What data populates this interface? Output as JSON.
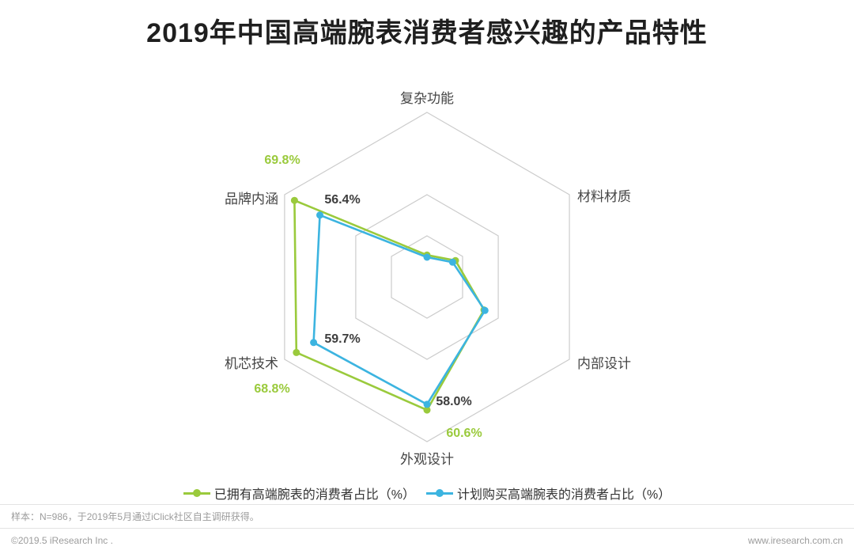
{
  "title": "2019年中国高端腕表消费者感兴趣的产品特性",
  "chart_data": {
    "type": "radar",
    "title": "2019年中国高端腕表消费者感兴趣的产品特性",
    "categories": [
      "复杂功能",
      "材料材质",
      "内部设计",
      "外观设计",
      "机芯技术",
      "品牌内涵"
    ],
    "r_axis": {
      "min": 0,
      "max": 75,
      "grid_levels": [
        0.25,
        0.5,
        1
      ]
    },
    "grid": "nested-hexagons",
    "legend_position": "bottom",
    "series": [
      {
        "name": "已拥有高端腕表的消费者占比（%）",
        "color": "#9aca3c",
        "values": [
          10,
          15,
          30,
          60.6,
          68.8,
          69.8
        ]
      },
      {
        "name": "计划购买高端腕表的消费者占比（%）",
        "color": "#3cb4e0",
        "values": [
          9,
          13.5,
          30.5,
          58.0,
          59.7,
          56.4
        ]
      }
    ],
    "point_labels": [
      {
        "text": "69.8%",
        "category": "品牌内涵",
        "series": "已拥有高端腕表的消费者占比（%）"
      },
      {
        "text": "56.4%",
        "category": "品牌内涵",
        "series": "计划购买高端腕表的消费者占比（%）"
      },
      {
        "text": "59.7%",
        "category": "机芯技术",
        "series": "计划购买高端腕表的消费者占比（%）"
      },
      {
        "text": "68.8%",
        "category": "机芯技术",
        "series": "已拥有高端腕表的消费者占比（%）"
      },
      {
        "text": "58.0%",
        "category": "外观设计",
        "series": "计划购买高端腕表的消费者占比（%）"
      },
      {
        "text": "60.6%",
        "category": "外观设计",
        "series": "已拥有高端腕表的消费者占比（%）"
      }
    ]
  },
  "footer": {
    "sample_note": "样本：N=986，于2019年5月通过iClick社区自主调研获得。",
    "copyright": "©2019.5 iResearch Inc .",
    "website": "www.iresearch.com.cn"
  }
}
